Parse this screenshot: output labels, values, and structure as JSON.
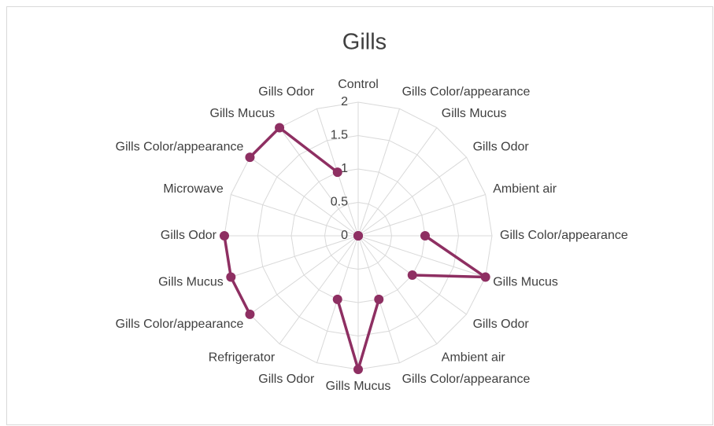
{
  "chart_data": {
    "type": "radar",
    "title": "Gills",
    "categories": [
      "Control",
      "Gills Color/appearance",
      "Gills Mucus",
      "Gills Odor",
      "Ambient air",
      "Gills Color/appearance",
      "Gills Mucus",
      "Gills Odor",
      "Ambient air",
      "Gills Color/appearance",
      "Gills Mucus",
      "Gills Odor",
      "Refrigerator",
      "Gills Color/appearance",
      "Gills Mucus",
      "Gills Odor",
      "Microwave",
      "Gills Color/appearance",
      "Gills Mucus",
      "Gills Odor"
    ],
    "values": [
      null,
      0,
      0,
      0,
      null,
      1,
      2,
      1,
      null,
      1,
      2,
      1,
      null,
      2,
      2,
      2,
      null,
      2,
      2,
      1
    ],
    "color": "#8e2f62",
    "ylim": [
      0,
      2
    ],
    "yticks": [
      0,
      0.5,
      1,
      1.5,
      2
    ],
    "grid": true
  }
}
